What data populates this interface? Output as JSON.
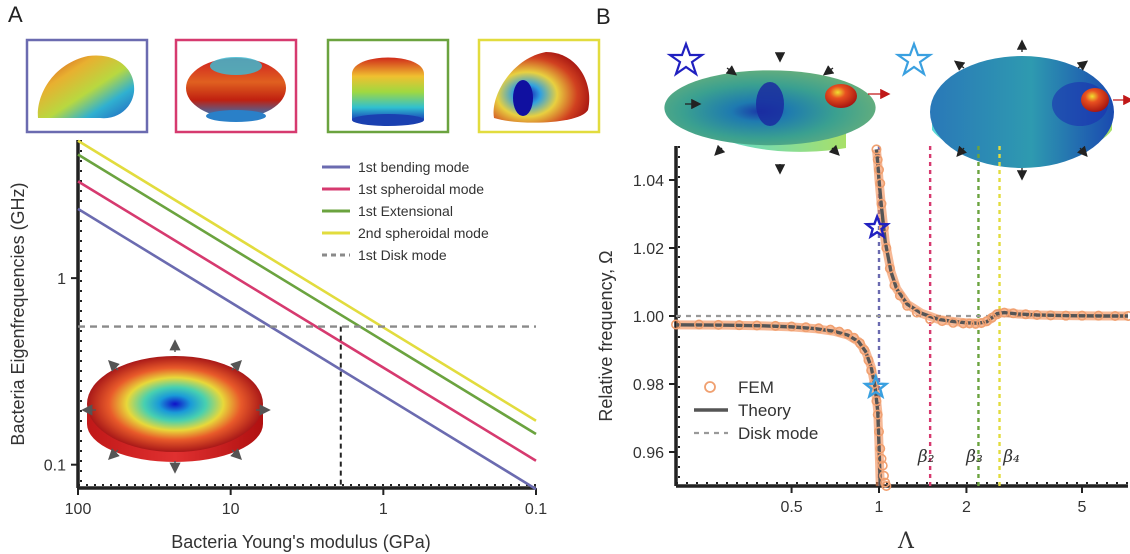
{
  "panels": {
    "a_label": "A",
    "b_label": "B"
  },
  "chart_data": [
    {
      "type": "line",
      "panel": "A",
      "xlabel": "Bacteria Young's modulus (GPa)",
      "ylabel": "Bacteria Eigenfrequencies (GHz)",
      "xscale": "log",
      "yscale": "log",
      "xlim": [
        100,
        0.1
      ],
      "ylim": [
        0.075,
        5.5
      ],
      "xticks": [
        100,
        10,
        1,
        0.1
      ],
      "xtick_labels": [
        "100",
        "10",
        "1",
        "0.1"
      ],
      "yticks": [
        0.1,
        1
      ],
      "ytick_labels": [
        "0.1",
        "1"
      ],
      "legend_position": "top-right",
      "series": [
        {
          "name": "1st bending mode",
          "color": "#6b6bb0",
          "x": [
            100,
            0.1
          ],
          "y": [
            2.35,
            0.074
          ]
        },
        {
          "name": "1st spheroidal mode",
          "color": "#d63a6f",
          "x": [
            100,
            0.1
          ],
          "y": [
            3.3,
            0.105
          ]
        },
        {
          "name": "1st Extensional",
          "color": "#6ba33f",
          "x": [
            100,
            0.1
          ],
          "y": [
            4.6,
            0.146
          ]
        },
        {
          "name": "2nd spheroidal mode",
          "color": "#e2dc3e",
          "x": [
            100,
            0.1
          ],
          "y": [
            5.45,
            0.172
          ]
        },
        {
          "name": "1st Disk mode",
          "color": "#8a8a8a",
          "dashed": true,
          "x": [
            100,
            0.1
          ],
          "y": [
            0.55,
            0.55
          ]
        }
      ],
      "annotations": {
        "intersection_modulus": 1.9,
        "mode_icon_colors": [
          "#6b6bb0",
          "#d63a6f",
          "#6ba33f",
          "#e2dc3e"
        ]
      }
    },
    {
      "type": "line",
      "panel": "B",
      "xlabel": "Λ",
      "ylabel": "Relative frequency, Ω",
      "xscale": "log",
      "xlim": [
        0.2,
        7.2
      ],
      "ylim": [
        0.95,
        1.05
      ],
      "xticks": [
        0.5,
        1,
        2,
        5
      ],
      "xtick_labels": [
        "0.5",
        "1",
        "2",
        "5"
      ],
      "yticks": [
        0.96,
        0.98,
        1.0,
        1.02,
        1.04
      ],
      "ytick_labels": [
        "0.96",
        "0.98",
        "1.00",
        "1.02",
        "1.04"
      ],
      "legend_position": "bottom-left",
      "series": [
        {
          "name": "FEM",
          "color": "#f0a070",
          "marker": "circle",
          "x": [
            0.2,
            0.24,
            0.28,
            0.33,
            0.38,
            0.44,
            0.5,
            0.56,
            0.62,
            0.68,
            0.73,
            0.78,
            0.82,
            0.86,
            0.89,
            0.92,
            0.94,
            0.96,
            0.98,
            0.99,
            1.0,
            1.01,
            1.02,
            1.03,
            1.04,
            1.05,
            1.06,
            0.98,
            0.99,
            1.0,
            1.01,
            1.02,
            1.04,
            1.06,
            1.09,
            1.13,
            1.18,
            1.25,
            1.35,
            1.5,
            1.65,
            1.8,
            1.95,
            2.05,
            2.15,
            2.25,
            2.35,
            2.45,
            2.55,
            2.7,
            2.9,
            3.2,
            3.5,
            3.9,
            4.4,
            5.0,
            5.7,
            6.5,
            7.2
          ],
          "y": [
            0.9975,
            0.9975,
            0.9974,
            0.9973,
            0.9972,
            0.9971,
            0.9969,
            0.9967,
            0.9964,
            0.996,
            0.9954,
            0.9947,
            0.9936,
            0.992,
            0.99,
            0.987,
            0.984,
            0.98,
            0.975,
            0.971,
            0.966,
            0.961,
            0.958,
            0.956,
            0.953,
            0.951,
            0.95,
            1.049,
            1.046,
            1.043,
            1.039,
            1.033,
            1.026,
            1.02,
            1.014,
            1.009,
            1.006,
            1.003,
            1.001,
            0.999,
            0.9985,
            0.998,
            0.9978,
            0.9978,
            0.9977,
            0.9979,
            0.9985,
            0.9995,
            1.0005,
            1.001,
            1.0008,
            1.0005,
            1.0003,
            1.0002,
            1.0001,
            1.0001,
            1.0001,
            1.0,
            1.0
          ]
        },
        {
          "name": "Theory",
          "color": "#555555",
          "branches": [
            {
              "x": [
                0.2,
                0.3,
                0.4,
                0.5,
                0.6,
                0.7,
                0.78,
                0.85,
                0.9,
                0.94,
                0.97,
                0.99,
                1.0,
                1.01
              ],
              "y": [
                0.9974,
                0.9973,
                0.9971,
                0.9968,
                0.9963,
                0.9955,
                0.9944,
                0.9925,
                0.9895,
                0.985,
                0.979,
                0.972,
                0.962,
                0.95
              ]
            },
            {
              "x": [
                0.98,
                0.99,
                1.0,
                1.02,
                1.05,
                1.1,
                1.15,
                1.25,
                1.4,
                1.6,
                1.8,
                2.0,
                2.2,
                2.35,
                2.45,
                2.55,
                2.7,
                3.0,
                3.5,
                4.5,
                6.0,
                7.2
              ],
              "y": [
                1.049,
                1.045,
                1.04,
                1.032,
                1.022,
                1.013,
                1.008,
                1.0035,
                1.0008,
                0.999,
                0.9984,
                0.998,
                0.9979,
                0.9983,
                0.9995,
                1.0007,
                1.001,
                1.0006,
                1.0003,
                1.0001,
                1.0,
                1.0
              ]
            }
          ]
        },
        {
          "name": "Disk mode",
          "color": "#999999",
          "dashed": true,
          "x": [
            0.2,
            7.2
          ],
          "y": [
            1.0,
            1.0
          ]
        }
      ],
      "vertical_markers": [
        {
          "x": 1.0,
          "color": "#6b6bb0",
          "label": ""
        },
        {
          "x": 1.5,
          "color": "#d63a6f",
          "label": "β₂"
        },
        {
          "x": 2.2,
          "color": "#6ba33f",
          "label": "β₃"
        },
        {
          "x": 2.6,
          "color": "#e2dc3e",
          "label": "β₄"
        }
      ],
      "star_markers": [
        {
          "x": 0.985,
          "y": 1.026,
          "color": "#2020c0"
        },
        {
          "x": 0.975,
          "y": 0.979,
          "color": "#3aa0e0"
        }
      ]
    }
  ]
}
